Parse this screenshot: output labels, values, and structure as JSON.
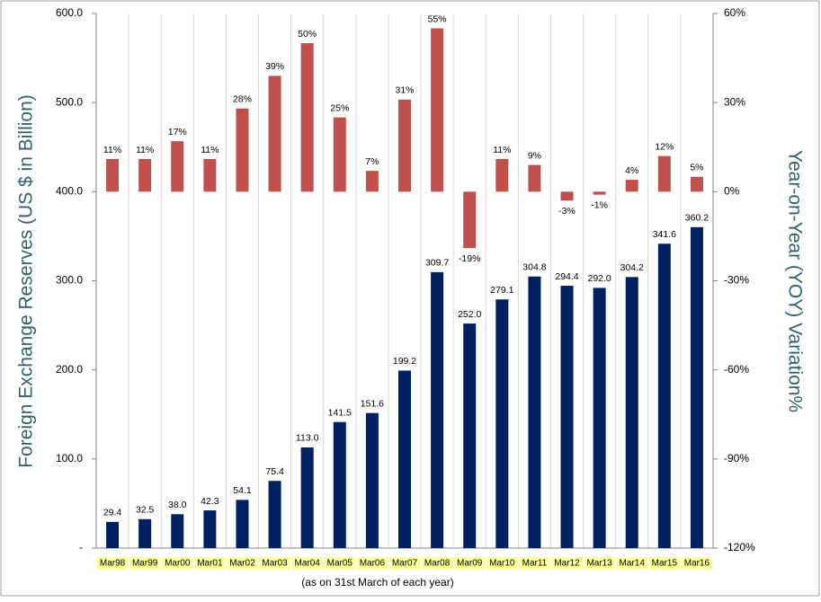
{
  "chart_data": {
    "type": "bar",
    "categories": [
      "Mar98",
      "Mar99",
      "Mar00",
      "Mar01",
      "Mar02",
      "Mar03",
      "Mar04",
      "Mar05",
      "Mar06",
      "Mar07",
      "Mar08",
      "Mar09",
      "Mar10",
      "Mar11",
      "Mar12",
      "Mar13",
      "Mar14",
      "Mar15",
      "Mar16"
    ],
    "x_label": "(as on 31st March of each year)",
    "y_label": "Foreign Exchange Reserves (US $ in Billion)",
    "y2_label": "Year-on-Year (YOY) Variation%",
    "ylim": [
      0,
      600
    ],
    "yticks": [
      {
        "value": 0,
        "label": "-"
      },
      {
        "value": 100,
        "label": "100.0"
      },
      {
        "value": 200,
        "label": "200.0"
      },
      {
        "value": 300,
        "label": "300.0"
      },
      {
        "value": 400,
        "label": "400.0"
      },
      {
        "value": 500,
        "label": "500.0"
      },
      {
        "value": 600,
        "label": "600.0"
      }
    ],
    "y2lim": [
      -120,
      60
    ],
    "y2ticks": [
      {
        "value": -120,
        "label": "-120%"
      },
      {
        "value": -90,
        "label": "-90%"
      },
      {
        "value": -60,
        "label": "-60%"
      },
      {
        "value": -30,
        "label": "-30%"
      },
      {
        "value": 0,
        "label": "0%"
      },
      {
        "value": 30,
        "label": "30%"
      },
      {
        "value": 60,
        "label": "60%"
      }
    ],
    "x_grid": true,
    "category_label_background": "#ffff99",
    "series": [
      {
        "color": "#002060",
        "values": [
          29.4,
          32.5,
          38.0,
          42.3,
          54.1,
          75.4,
          113.0,
          141.5,
          151.6,
          199.2,
          309.7,
          252.0,
          279.1,
          304.8,
          294.4,
          292.0,
          304.2,
          341.6,
          360.2
        ],
        "value_labels": [
          "29.4",
          "32.5",
          "38.0",
          "42.3",
          "54.1",
          "75.4",
          "113.0",
          "141.5",
          "151.6",
          "199.2",
          "309.7",
          "252.0",
          "279.1",
          "304.8",
          "294.4",
          "292.0",
          "304.2",
          "341.6",
          "360.2"
        ]
      },
      {
        "color": "#c0504d",
        "axis": "y2",
        "values": [
          11,
          11,
          17,
          11,
          28,
          39,
          50,
          25,
          7,
          31,
          55,
          -19,
          11,
          9,
          -3,
          -1,
          4,
          12,
          5
        ],
        "value_labels": [
          "11%",
          "11%",
          "17%",
          "11%",
          "28%",
          "39%",
          "50%",
          "25%",
          "7%",
          "31%",
          "55%",
          "-19%",
          "11%",
          "9%",
          "-3%",
          "-1%",
          "4%",
          "12%",
          "5%"
        ]
      }
    ]
  }
}
